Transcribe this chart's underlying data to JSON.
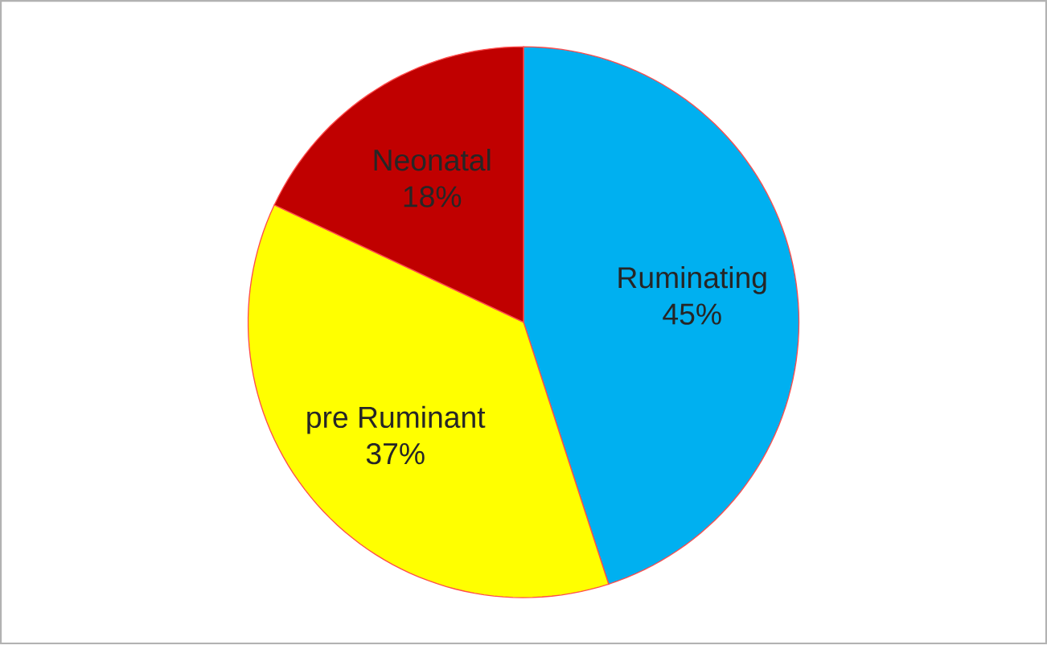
{
  "chart_data": {
    "type": "pie",
    "categories": [
      "Ruminating",
      "pre Ruminant",
      "Neonatal"
    ],
    "values": [
      45,
      37,
      18
    ],
    "value_labels": [
      "45%",
      "37%",
      "18%"
    ],
    "colors": [
      "#00b0f0",
      "#ffff00",
      "#c00000"
    ]
  }
}
